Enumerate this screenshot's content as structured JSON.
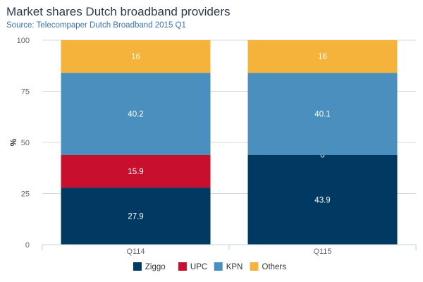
{
  "header": {
    "title": "Market shares Dutch broadband providers",
    "subtitle": "Source: Telecompaper Dutch Broadband 2015 Q1"
  },
  "chart_data": {
    "type": "bar",
    "stacked": true,
    "title": "Market shares Dutch broadband providers",
    "subtitle": "Source: Telecompaper Dutch Broadband 2015 Q1",
    "xlabel": "",
    "ylabel": "%",
    "ylim": [
      0,
      100
    ],
    "yticks": [
      0,
      25,
      50,
      75,
      100
    ],
    "categories": [
      "Q114",
      "Q115"
    ],
    "series": [
      {
        "name": "Ziggo",
        "color": "#003a63",
        "values": [
          27.9,
          43.9
        ]
      },
      {
        "name": "UPC",
        "color": "#c8102e",
        "values": [
          15.9,
          0
        ]
      },
      {
        "name": "KPN",
        "color": "#4a8fbd",
        "values": [
          40.2,
          40.1
        ]
      },
      {
        "name": "Others",
        "color": "#f6b33b",
        "values": [
          16,
          16
        ]
      }
    ],
    "grid": true,
    "legend": "bottom-center"
  }
}
